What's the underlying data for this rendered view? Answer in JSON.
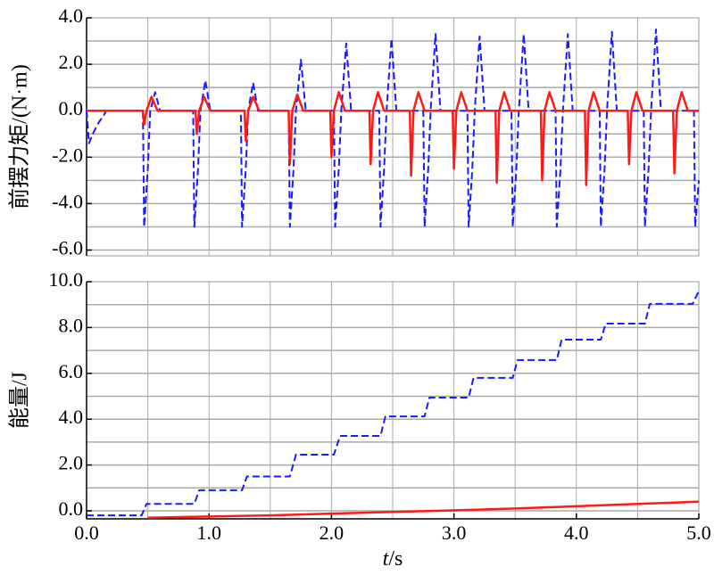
{
  "chart_data": [
    {
      "type": "line",
      "ylabel": "前摆力矩/(N·m)",
      "xlim": [
        0,
        5
      ],
      "ylim": [
        -6.25,
        4.0
      ],
      "xgrid": [
        0.5,
        1,
        1.5,
        2,
        2.5,
        3,
        3.5,
        4,
        4.5
      ],
      "ygrid": [
        -6,
        -5,
        -4,
        -3,
        -2,
        -1,
        0,
        1,
        2,
        3
      ],
      "yticks": [
        {
          "value": 4,
          "label": "4.0"
        },
        {
          "value": 2,
          "label": "2.0"
        },
        {
          "value": 0,
          "label": "0.0"
        },
        {
          "value": -2,
          "label": "-2.0"
        },
        {
          "value": -4,
          "label": "-4.0"
        },
        {
          "value": -6,
          "label": "-6.0"
        }
      ],
      "grid": true,
      "series": [
        {
          "color": "#1a1aff",
          "dash": true,
          "x": [
            0,
            0.02,
            0.05,
            0.1,
            0.14,
            0.16,
            0.46,
            0.47,
            0.5,
            0.52,
            0.56,
            0.6,
            0.87,
            0.88,
            0.91,
            0.93,
            0.97,
            1.01,
            1.26,
            1.27,
            1.3,
            1.32,
            1.36,
            1.4,
            1.65,
            1.66,
            1.69,
            1.71,
            1.75,
            1.79,
            2.02,
            2.03,
            2.06,
            2.08,
            2.12,
            2.16,
            2.39,
            2.4,
            2.43,
            2.45,
            2.49,
            2.53,
            2.75,
            2.76,
            2.79,
            2.81,
            2.85,
            2.89,
            3.11,
            3.12,
            3.15,
            3.17,
            3.21,
            3.25,
            3.47,
            3.48,
            3.51,
            3.53,
            3.57,
            3.61,
            3.83,
            3.84,
            3.87,
            3.89,
            3.93,
            3.97,
            4.19,
            4.2,
            4.23,
            4.25,
            4.29,
            4.33,
            4.55,
            4.56,
            4.59,
            4.61,
            4.65,
            4.69,
            4.96,
            4.97,
            5.0
          ],
          "values": [
            0,
            -1.4,
            -1.0,
            -0.5,
            -0.2,
            0,
            0,
            -5,
            -2.5,
            0,
            0.8,
            0,
            0,
            -5,
            -2.5,
            0,
            1.3,
            0,
            0,
            -5,
            -2.5,
            0,
            1.2,
            0,
            0,
            -5,
            -2.5,
            0,
            2.2,
            0,
            0,
            -5,
            -2.5,
            0,
            2.9,
            0,
            0,
            -5,
            -2.5,
            0,
            3.1,
            0,
            0,
            -5,
            -2.5,
            0,
            3.3,
            0,
            0,
            -5,
            -2.5,
            0,
            3.2,
            0,
            0,
            -5,
            -2.5,
            0,
            3.3,
            0,
            0,
            -5,
            -2.5,
            0,
            3.3,
            0,
            0,
            -5,
            -2.5,
            0,
            3.4,
            0,
            0,
            -5,
            -2.5,
            0,
            3.5,
            0,
            0,
            -5,
            -3
          ]
        },
        {
          "color": "#ff1a1a",
          "dash": false,
          "x": [
            0,
            0.46,
            0.47,
            0.49,
            0.53,
            0.58,
            0.89,
            0.9,
            0.92,
            0.96,
            1.01,
            1.29,
            1.3,
            1.32,
            1.36,
            1.41,
            1.65,
            1.66,
            1.68,
            1.72,
            1.77,
            1.99,
            2.0,
            2.02,
            2.06,
            2.11,
            2.31,
            2.32,
            2.34,
            2.38,
            2.43,
            2.64,
            2.65,
            2.67,
            2.71,
            2.76,
            2.99,
            3.0,
            3.02,
            3.06,
            3.11,
            3.34,
            3.35,
            3.37,
            3.41,
            3.46,
            3.71,
            3.72,
            3.74,
            3.78,
            3.83,
            4.07,
            4.08,
            4.1,
            4.14,
            4.19,
            4.42,
            4.43,
            4.45,
            4.49,
            4.54,
            4.79,
            4.8,
            4.82,
            4.86,
            4.91,
            5.0
          ],
          "values": [
            0,
            0,
            -0.6,
            0,
            0.6,
            0,
            0,
            -1.0,
            0,
            0.6,
            0,
            0,
            -1.3,
            0,
            0.6,
            0,
            0,
            -2.3,
            0,
            0.7,
            0,
            0,
            -2.0,
            0,
            0.8,
            0,
            0,
            -2.3,
            0,
            0.8,
            0,
            0,
            -2.8,
            0,
            0.8,
            0,
            0,
            -2.5,
            0,
            0.8,
            0,
            0,
            -3.1,
            0,
            0.8,
            0,
            0,
            -3.0,
            0,
            0.8,
            0,
            0,
            -3.2,
            0,
            0.8,
            0,
            0,
            -2.3,
            0,
            0.8,
            0,
            0,
            -2.7,
            0,
            0.8,
            0,
            0
          ]
        }
      ]
    },
    {
      "type": "line",
      "ylabel": "能量/J",
      "xlabel_var": "t",
      "xlabel_unit": "/s",
      "xlim": [
        0,
        5
      ],
      "ylim": [
        -0.35,
        10.0
      ],
      "xticks": [
        {
          "value": 0,
          "label": "0.0"
        },
        {
          "value": 1,
          "label": "1.0"
        },
        {
          "value": 2,
          "label": "2.0"
        },
        {
          "value": 3,
          "label": "3.0"
        },
        {
          "value": 4,
          "label": "4.0"
        },
        {
          "value": 5,
          "label": "5.0"
        }
      ],
      "xgrid": [
        0.5,
        1,
        1.5,
        2,
        2.5,
        3,
        3.5,
        4,
        4.5
      ],
      "ygrid": [
        0,
        1,
        2,
        3,
        4,
        5,
        6,
        7,
        8,
        9
      ],
      "yticks": [
        {
          "value": 10,
          "label": "10.0"
        },
        {
          "value": 8,
          "label": "8.0"
        },
        {
          "value": 6,
          "label": "6.0"
        },
        {
          "value": 4,
          "label": "4.0"
        },
        {
          "value": 2,
          "label": "2.0"
        },
        {
          "value": 0,
          "label": "0.0"
        }
      ],
      "grid": true,
      "series": [
        {
          "color": "#1a1aff",
          "dash": true,
          "x": [
            0,
            0.45,
            0.49,
            0.88,
            0.92,
            1.27,
            1.31,
            1.66,
            1.71,
            2.02,
            2.07,
            2.4,
            2.44,
            2.76,
            2.8,
            3.12,
            3.16,
            3.48,
            3.52,
            3.84,
            3.88,
            4.2,
            4.24,
            4.56,
            4.6,
            4.95,
            5.0
          ],
          "values": [
            -0.2,
            -0.2,
            0.3,
            0.3,
            0.9,
            0.9,
            1.5,
            1.5,
            2.45,
            2.45,
            3.27,
            3.27,
            4.12,
            4.12,
            4.94,
            4.94,
            5.8,
            5.8,
            6.58,
            6.58,
            7.47,
            7.47,
            8.17,
            8.17,
            9.03,
            9.03,
            9.6
          ]
        },
        {
          "color": "#ff1a1a",
          "dash": false,
          "x": [
            0.5,
            1.0,
            1.5,
            2.0,
            2.5,
            3.0,
            3.5,
            4.0,
            4.5,
            5.0
          ],
          "values": [
            -0.3,
            -0.25,
            -0.2,
            -0.12,
            -0.05,
            0.02,
            0.1,
            0.2,
            0.3,
            0.4
          ]
        }
      ]
    }
  ]
}
